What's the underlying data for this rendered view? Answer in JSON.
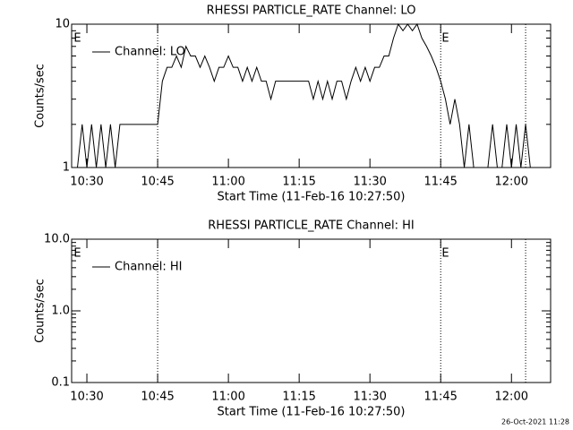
{
  "chart_data": [
    {
      "type": "line",
      "title": "RHESSI PARTICLE_RATE Channel: LO",
      "xlabel": "Start Time (11-Feb-16 10:27:50)",
      "ylabel": "Counts/sec",
      "log_y": true,
      "ylim": [
        1,
        10
      ],
      "yticks": [
        1,
        10
      ],
      "xlim": [
        "10:26:46",
        "12:08:18"
      ],
      "xticks": [
        "10:30",
        "10:45",
        "11:00",
        "11:15",
        "11:30",
        "11:45",
        "12:00"
      ],
      "vlines": [
        "10:45",
        "11:45",
        "12:03"
      ],
      "annotations": [
        {
          "text": "E",
          "x": "10:28"
        },
        {
          "text": "E",
          "x": "11:46"
        }
      ],
      "legend": "top-left",
      "x": [
        "10:28",
        "10:29",
        "10:30",
        "10:31",
        "10:32",
        "10:33",
        "10:34",
        "10:35",
        "10:36",
        "10:37",
        "10:38",
        "10:39",
        "10:40",
        "10:41",
        "10:42",
        "10:43",
        "10:44",
        "10:45",
        "10:46",
        "10:47",
        "10:48",
        "10:49",
        "10:50",
        "10:51",
        "10:52",
        "10:53",
        "10:54",
        "10:55",
        "10:56",
        "10:57",
        "10:58",
        "10:59",
        "11:00",
        "11:01",
        "11:02",
        "11:03",
        "11:04",
        "11:05",
        "11:06",
        "11:07",
        "11:08",
        "11:09",
        "11:10",
        "11:11",
        "11:12",
        "11:13",
        "11:14",
        "11:15",
        "11:16",
        "11:17",
        "11:18",
        "11:19",
        "11:20",
        "11:21",
        "11:22",
        "11:23",
        "11:24",
        "11:25",
        "11:26",
        "11:27",
        "11:28",
        "11:29",
        "11:30",
        "11:31",
        "11:32",
        "11:33",
        "11:34",
        "11:35",
        "11:36",
        "11:37",
        "11:38",
        "11:39",
        "11:40",
        "11:41",
        "11:42",
        "11:43",
        "11:44",
        "11:45",
        "11:46",
        "11:47",
        "11:48",
        "11:49",
        "11:50",
        "11:51",
        "11:52",
        "11:53",
        "11:54",
        "11:55",
        "11:56",
        "11:57",
        "11:58",
        "11:59",
        "12:00",
        "12:01",
        "12:02",
        "12:03",
        "12:04"
      ],
      "series": [
        {
          "name": "Channel: LO",
          "color": "#000000",
          "values": [
            1,
            2,
            1,
            2,
            1,
            2,
            1,
            2,
            1,
            2,
            2,
            2,
            2,
            2,
            2,
            2,
            2,
            2,
            4,
            5,
            5,
            6,
            5,
            7,
            6,
            6,
            5,
            6,
            5,
            4,
            5,
            5,
            6,
            5,
            5,
            4,
            5,
            4,
            5,
            4,
            4,
            3,
            4,
            4,
            4,
            4,
            4,
            4,
            4,
            4,
            3,
            4,
            3,
            4,
            3,
            4,
            4,
            3,
            4,
            5,
            4,
            5,
            4,
            5,
            5,
            6,
            6,
            8,
            10,
            9,
            10,
            9,
            10,
            8,
            7,
            6,
            5,
            4,
            3,
            2,
            3,
            2,
            1,
            2,
            1,
            1,
            1,
            1,
            2,
            1,
            1,
            2,
            1,
            2,
            1,
            2,
            1
          ]
        }
      ]
    },
    {
      "type": "line",
      "title": "RHESSI PARTICLE_RATE Channel: HI",
      "xlabel": "Start Time (11-Feb-16 10:27:50)",
      "ylabel": "Counts/sec",
      "log_y": true,
      "ylim": [
        0.1,
        10
      ],
      "yticks": [
        {
          "value": 0.1,
          "label": "0.1"
        },
        {
          "value": 1,
          "label": "1.0"
        },
        {
          "value": 10,
          "label": "10.0"
        }
      ],
      "xlim": [
        "10:26:46",
        "12:08:18"
      ],
      "xticks": [
        "10:30",
        "10:45",
        "11:00",
        "11:15",
        "11:30",
        "11:45",
        "12:00"
      ],
      "vlines": [
        "10:45",
        "11:45",
        "12:03"
      ],
      "annotations": [
        {
          "text": "E",
          "x": "10:28"
        },
        {
          "text": "E",
          "x": "11:46"
        }
      ],
      "legend": "top-left",
      "x": [],
      "series": [
        {
          "name": "Channel: HI",
          "color": "#000000",
          "values": []
        }
      ]
    }
  ],
  "footer": "26-Oct-2021 11:28"
}
